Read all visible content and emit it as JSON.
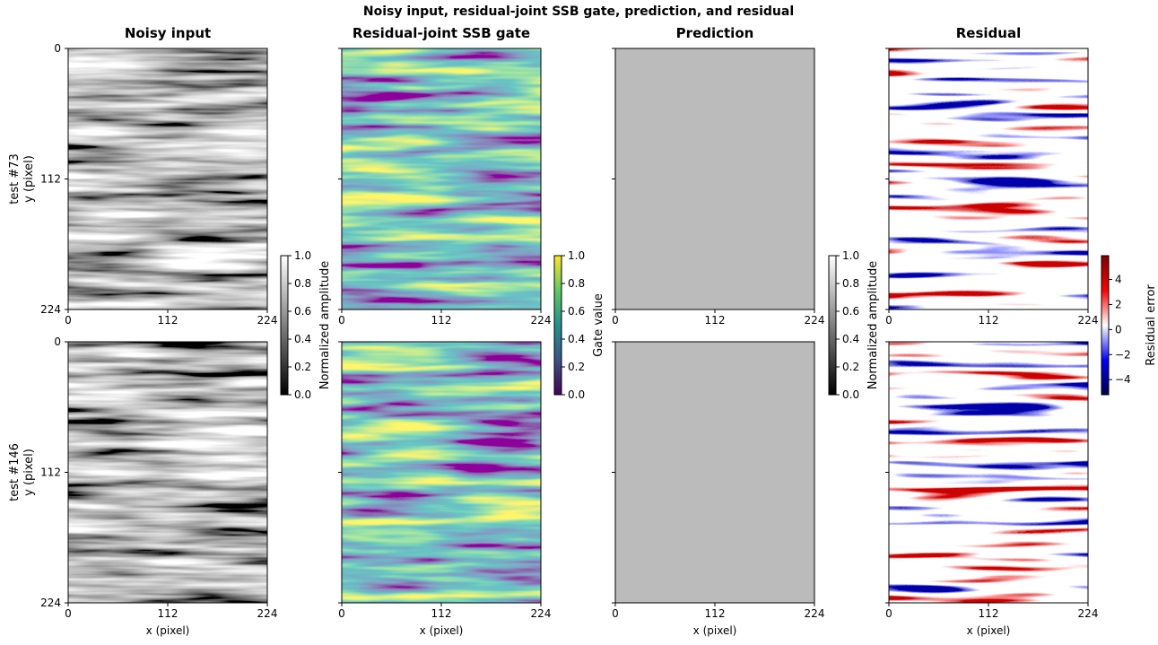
{
  "figure": {
    "title": "Noisy input, residual-joint SSB gate, prediction, and residual",
    "xlabel": "x (pixel)",
    "ylabel": "y (pixel)",
    "xlim": [
      0,
      224
    ],
    "ylim": [
      0,
      224
    ],
    "xticks": [
      0,
      112,
      224
    ],
    "yticks": [
      0,
      112,
      224
    ],
    "rows": [
      {
        "label": "test #73"
      },
      {
        "label": "test #146"
      }
    ],
    "columns": [
      {
        "title": "Noisy input",
        "colormap": "gray",
        "colorbar": {
          "label": "Normalized amplitude",
          "lim": [
            0,
            1
          ],
          "ticks": [
            {
              "value": 0,
              "label": "0.0"
            },
            {
              "value": 0.2,
              "label": "0.2"
            },
            {
              "value": 0.4,
              "label": "0.4"
            },
            {
              "value": 0.6,
              "label": "0.6"
            },
            {
              "value": 0.8,
              "label": "0.8"
            },
            {
              "value": 1,
              "label": "1.0"
            }
          ]
        }
      },
      {
        "title": "Residual-joint SSB gate",
        "colormap": "viridis",
        "colorbar": {
          "label": "Gate value",
          "lim": [
            0,
            1
          ],
          "ticks": [
            {
              "value": 0,
              "label": "0.0"
            },
            {
              "value": 0.2,
              "label": "0.2"
            },
            {
              "value": 0.4,
              "label": "0.4"
            },
            {
              "value": 0.6,
              "label": "0.6"
            },
            {
              "value": 0.8,
              "label": "0.8"
            },
            {
              "value": 1,
              "label": "1.0"
            }
          ]
        }
      },
      {
        "title": "Prediction",
        "colormap": "gray-smooth",
        "colorbar": {
          "label": "Normalized amplitude",
          "lim": [
            0,
            1
          ],
          "ticks": [
            {
              "value": 0,
              "label": "0.0"
            },
            {
              "value": 0.2,
              "label": "0.2"
            },
            {
              "value": 0.4,
              "label": "0.4"
            },
            {
              "value": 0.6,
              "label": "0.6"
            },
            {
              "value": 0.8,
              "label": "0.8"
            },
            {
              "value": 1,
              "label": "1.0"
            }
          ]
        }
      },
      {
        "title": "Residual",
        "colormap": "seismic",
        "colorbar": {
          "label": "Residual error",
          "lim": [
            -5.2,
            5.9
          ],
          "ticks": [
            {
              "value": -4,
              "label": "−4"
            },
            {
              "value": -2,
              "label": "−2"
            },
            0,
            2,
            4
          ]
        }
      }
    ]
  }
}
